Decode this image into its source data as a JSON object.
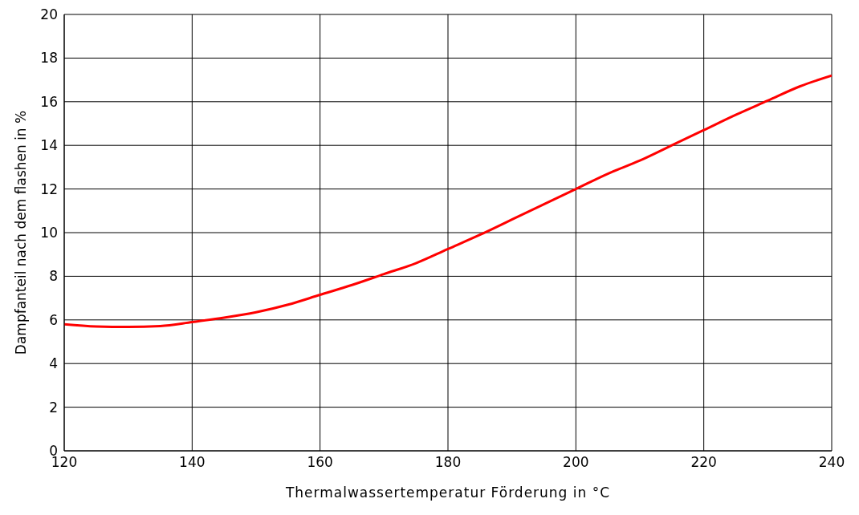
{
  "chart_data": {
    "type": "line",
    "xlabel": "Thermalwassertemperatur Förderung in °C",
    "ylabel": "Dampfanteil nach dem flashen in %",
    "x": [
      120,
      125,
      130,
      135,
      140,
      145,
      150,
      155,
      160,
      165,
      170,
      175,
      180,
      185,
      190,
      195,
      200,
      205,
      210,
      215,
      220,
      225,
      230,
      235,
      240
    ],
    "series": [
      {
        "color": "#ff0000",
        "values": [
          5.8,
          5.7,
          5.68,
          5.72,
          5.9,
          6.1,
          6.35,
          6.7,
          7.15,
          7.6,
          8.1,
          8.6,
          9.25,
          9.9,
          10.6,
          11.3,
          12.0,
          12.7,
          13.3,
          14.0,
          14.7,
          15.4,
          16.05,
          16.7,
          17.2
        ]
      }
    ],
    "xlim": [
      120,
      240
    ],
    "xticks": [
      120,
      140,
      160,
      180,
      200,
      220,
      240
    ],
    "ylim": [
      0,
      20
    ],
    "yticks": [
      0,
      2,
      4,
      6,
      8,
      10,
      12,
      14,
      16,
      18,
      20
    ],
    "grid": true,
    "marker": "none",
    "line_style": "solid"
  }
}
